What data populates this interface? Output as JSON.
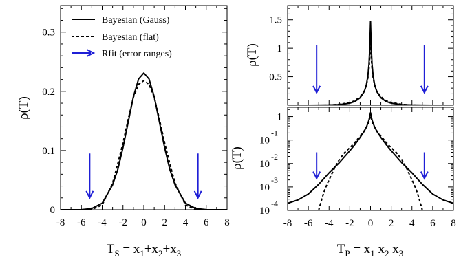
{
  "chart_data": [
    {
      "type": "line",
      "xlabel": "T_S = x_1+x_2+x_3",
      "xlabel_parts": {
        "main": "T",
        "main_sub": "S",
        "eq": " = x",
        "s1": "1",
        "p1": "+x",
        "s2": "2",
        "p2": "+x",
        "s3": "3"
      },
      "ylabel": "ρ(T)",
      "xlim": [
        -8,
        8
      ],
      "ylim": [
        0,
        0.345
      ],
      "xticks": [
        -8,
        -6,
        -4,
        -2,
        0,
        2,
        4,
        6,
        8
      ],
      "xticklabels": [
        "-8",
        "-6",
        "-4",
        "-2",
        "0",
        "2",
        "4",
        "6",
        "8"
      ],
      "yticks": [
        0,
        0.1,
        0.2,
        0.3
      ],
      "yticklabels": [
        "0",
        "0.1",
        "0.2",
        "0.3"
      ],
      "grid": false,
      "legend_position": "top-left",
      "legend": [
        "Bayesian (Gauss)",
        "Bayesian (flat)",
        "Rfit (error ranges)"
      ],
      "series": [
        {
          "name": "Bayesian (Gauss)",
          "style": "solid",
          "color": "#000000",
          "x": [
            -8,
            -7,
            -6,
            -5,
            -4,
            -3,
            -2.5,
            -2,
            -1.5,
            -1,
            -0.5,
            0,
            0.5,
            1,
            1.5,
            2,
            2.5,
            3,
            4,
            5,
            6,
            7,
            8
          ],
          "y": [
            0,
            0,
            0.0002,
            0.002,
            0.011,
            0.042,
            0.068,
            0.105,
            0.148,
            0.191,
            0.221,
            0.231,
            0.221,
            0.191,
            0.148,
            0.105,
            0.068,
            0.042,
            0.011,
            0.002,
            0.0002,
            0,
            0
          ]
        },
        {
          "name": "Bayesian (flat)",
          "style": "dashed",
          "color": "#000000",
          "x": [
            -8,
            -7,
            -6,
            -5,
            -4,
            -3,
            -2.5,
            -2,
            -1.5,
            -1,
            -0.5,
            0,
            0.5,
            1,
            1.5,
            2,
            2.5,
            3,
            4,
            5,
            6,
            7,
            8
          ],
          "y": [
            0,
            0,
            0,
            0.0005,
            0.008,
            0.045,
            0.078,
            0.113,
            0.153,
            0.19,
            0.212,
            0.218,
            0.212,
            0.19,
            0.153,
            0.113,
            0.078,
            0.045,
            0.008,
            0.0005,
            0,
            0,
            0
          ]
        }
      ],
      "arrows": {
        "name": "Rfit (error ranges)",
        "color": "#1f1fd6",
        "x": [
          -5.2,
          5.2
        ],
        "y_top": 0.095,
        "y_bottom": 0.02
      }
    },
    {
      "type": "line",
      "panel": "top",
      "ylabel": "ρ(T)",
      "xlim": [
        -8,
        8
      ],
      "ylim": [
        0,
        1.75
      ],
      "yticks": [
        0.5,
        1,
        1.5
      ],
      "yticklabels": [
        "0.5",
        "1",
        "1.5"
      ],
      "grid": false,
      "series": [
        {
          "name": "Bayesian (Gauss)",
          "style": "solid",
          "color": "#000000",
          "x": [
            -8,
            -6,
            -5,
            -4,
            -3,
            -2,
            -1.5,
            -1,
            -0.6,
            -0.4,
            -0.25,
            -0.15,
            -0.08,
            -0.03,
            0,
            0.03,
            0.08,
            0.15,
            0.25,
            0.4,
            0.6,
            1,
            1.5,
            2,
            3,
            4,
            5,
            6,
            8
          ],
          "y": [
            0.0001,
            0.0005,
            0.0013,
            0.004,
            0.011,
            0.035,
            0.065,
            0.13,
            0.24,
            0.36,
            0.52,
            0.72,
            0.98,
            1.28,
            1.47,
            1.28,
            0.98,
            0.72,
            0.52,
            0.36,
            0.24,
            0.13,
            0.065,
            0.035,
            0.011,
            0.004,
            0.0013,
            0.0005,
            0.0001
          ]
        },
        {
          "name": "Bayesian (flat)",
          "style": "dashed",
          "color": "#000000",
          "x": [
            -5,
            -4.5,
            -4,
            -3,
            -2,
            -1.5,
            -1,
            -0.6,
            -0.4,
            -0.25,
            -0.15,
            -0.08,
            -0.03,
            0,
            0.03,
            0.08,
            0.15,
            0.25,
            0.4,
            0.6,
            1,
            1.5,
            2,
            3,
            4,
            4.5,
            5
          ],
          "y": [
            0,
            0.0005,
            0.003,
            0.015,
            0.047,
            0.08,
            0.15,
            0.25,
            0.35,
            0.48,
            0.63,
            0.82,
            1.0,
            1.08,
            1.0,
            0.82,
            0.63,
            0.48,
            0.35,
            0.25,
            0.15,
            0.08,
            0.047,
            0.015,
            0.003,
            0.0005,
            0
          ]
        }
      ],
      "arrows": {
        "color": "#1f1fd6",
        "x": [
          -5.2,
          5.2
        ],
        "y_top": 1.05,
        "y_bottom": 0.22
      }
    },
    {
      "type": "line",
      "panel": "bottom",
      "ylabel": "ρ(T)",
      "xlabel": "T_P = x_1 x_2 x_3",
      "xlabel_parts": {
        "main": "T",
        "main_sub": "P",
        "eq": " = x",
        "s1": "1",
        "p1": " x",
        "s2": "2",
        "p2": " x",
        "s3": "3"
      },
      "xlim": [
        -8,
        8
      ],
      "ylog": true,
      "ylim": [
        0.0001,
        2.5
      ],
      "xticks": [
        -8,
        -6,
        -4,
        -2,
        0,
        2,
        4,
        6,
        8
      ],
      "xticklabels": [
        "-8",
        "-6",
        "-4",
        "-2",
        "0",
        "2",
        "4",
        "6",
        "8"
      ],
      "yticks": [
        0.0001,
        0.001,
        0.01,
        0.1,
        1
      ],
      "yticklabels": [
        {
          "base": "10",
          "exp": "-4"
        },
        {
          "base": "10",
          "exp": "-3"
        },
        {
          "base": "10",
          "exp": "-2"
        },
        {
          "base": "10",
          "exp": "-1"
        },
        {
          "base": "1",
          "exp": ""
        }
      ],
      "grid": false,
      "series": [
        {
          "name": "Bayesian (Gauss)",
          "style": "solid",
          "color": "#000000",
          "x": [
            -8,
            -7,
            -6,
            -5,
            -4,
            -3,
            -2,
            -1.5,
            -1,
            -0.6,
            -0.4,
            -0.25,
            -0.15,
            -0.08,
            -0.03,
            0,
            0.03,
            0.08,
            0.15,
            0.25,
            0.4,
            0.6,
            1,
            1.5,
            2,
            3,
            4,
            5,
            6,
            7,
            8
          ],
          "y": [
            0.0002,
            0.00028,
            0.0005,
            0.0013,
            0.004,
            0.011,
            0.035,
            0.065,
            0.13,
            0.24,
            0.36,
            0.52,
            0.72,
            0.98,
            1.28,
            1.47,
            1.28,
            0.98,
            0.72,
            0.52,
            0.36,
            0.24,
            0.13,
            0.065,
            0.035,
            0.011,
            0.004,
            0.0013,
            0.0005,
            0.00028,
            0.0002
          ]
        },
        {
          "name": "Bayesian (flat)",
          "style": "dashed",
          "color": "#000000",
          "x": [
            -5,
            -4.9,
            -4.7,
            -4.5,
            -4.2,
            -4,
            -3.5,
            -3,
            -2.5,
            -2,
            -1.5,
            -1,
            -0.6,
            -0.4,
            -0.25,
            -0.15,
            -0.08,
            -0.03,
            0,
            0.03,
            0.08,
            0.15,
            0.25,
            0.4,
            0.6,
            1,
            1.5,
            2,
            2.5,
            3,
            3.5,
            4,
            4.2,
            4.5,
            4.7,
            4.9,
            5
          ],
          "y": [
            0.0001,
            0.00015,
            0.0003,
            0.0006,
            0.0013,
            0.002,
            0.006,
            0.015,
            0.029,
            0.047,
            0.08,
            0.15,
            0.25,
            0.35,
            0.48,
            0.63,
            0.82,
            1.0,
            1.08,
            1.0,
            0.82,
            0.63,
            0.48,
            0.35,
            0.25,
            0.15,
            0.08,
            0.047,
            0.029,
            0.015,
            0.006,
            0.002,
            0.0013,
            0.0006,
            0.0003,
            0.00015,
            0.0001
          ]
        }
      ],
      "arrows": {
        "color": "#1f1fd6",
        "x": [
          -5.2,
          5.2
        ],
        "y_top": 0.03,
        "y_bottom": 0.0023
      }
    }
  ]
}
